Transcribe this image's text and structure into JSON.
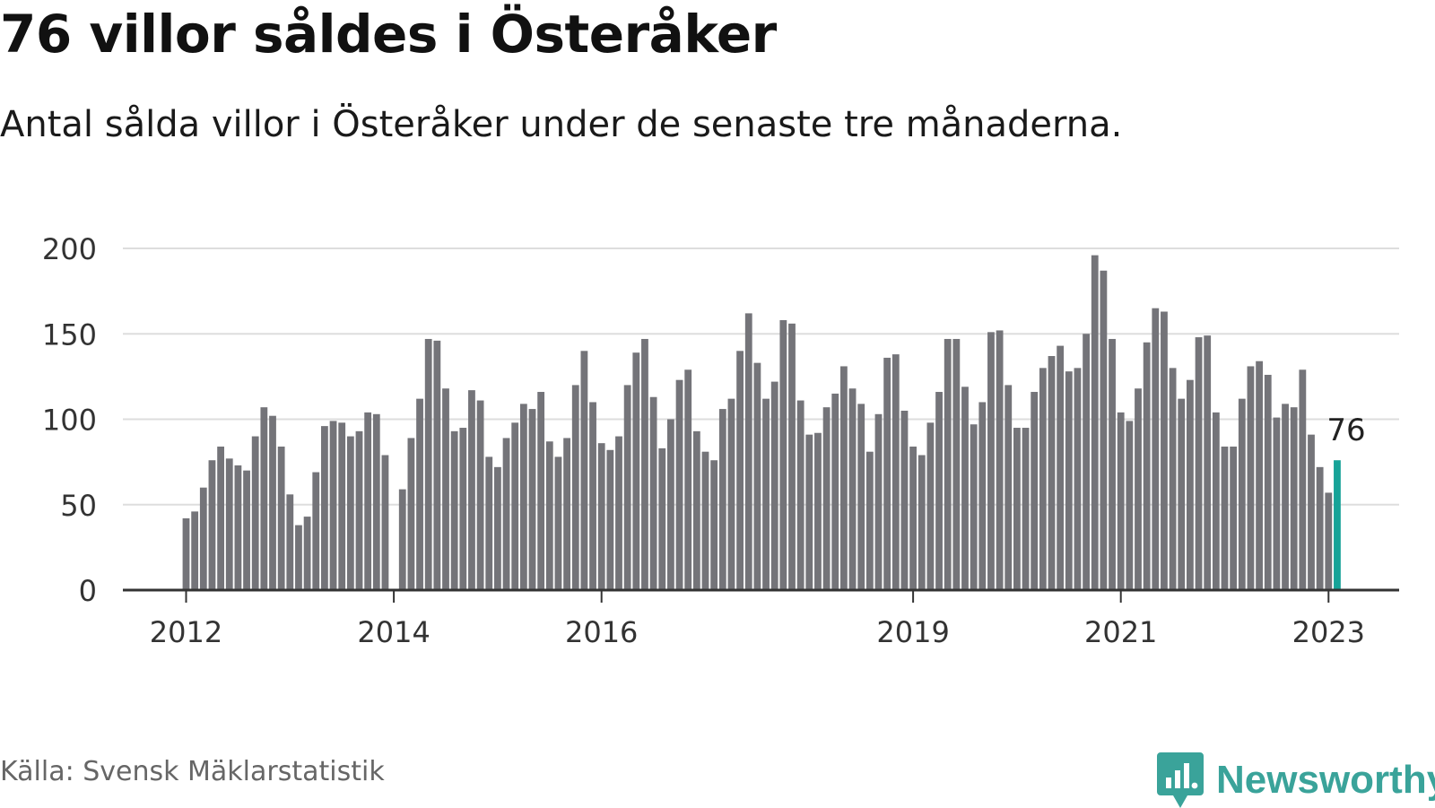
{
  "header": {
    "title": "76 villor såldes i Österåker",
    "subtitle": "Antal sålda villor i Österåker under de senaste tre månaderna."
  },
  "footer": {
    "source": "Källa: Svensk Mäklarstatistik",
    "brand": "Newsworthy",
    "brand_icon": "newsworthy-logo-icon"
  },
  "colors": {
    "bar": "#747479",
    "highlight": "#17a398",
    "grid": "#dddddd",
    "axis": "#333333",
    "brand": "#3aa39a"
  },
  "chart_data": {
    "type": "bar",
    "start": "2012-01",
    "x_ticks": [
      "2012",
      "2014",
      "2016",
      "2019",
      "2021",
      "2023"
    ],
    "y_ticks": [
      0,
      50,
      100,
      150,
      200
    ],
    "ylim": [
      0,
      200
    ],
    "grid": true,
    "highlight_label": "76",
    "values": [
      42,
      46,
      60,
      76,
      84,
      77,
      73,
      70,
      90,
      107,
      102,
      84,
      56,
      38,
      43,
      69,
      96,
      99,
      98,
      90,
      93,
      104,
      103,
      79,
      null,
      59,
      89,
      112,
      147,
      146,
      118,
      93,
      95,
      117,
      111,
      78,
      72,
      89,
      98,
      109,
      106,
      116,
      87,
      78,
      89,
      120,
      140,
      110,
      86,
      82,
      90,
      120,
      139,
      147,
      113,
      83,
      100,
      123,
      129,
      93,
      81,
      76,
      106,
      112,
      140,
      162,
      133,
      112,
      122,
      158,
      156,
      111,
      91,
      92,
      107,
      115,
      131,
      118,
      109,
      81,
      103,
      136,
      138,
      105,
      84,
      79,
      98,
      116,
      147,
      147,
      119,
      97,
      110,
      151,
      152,
      120,
      95,
      95,
      116,
      130,
      137,
      143,
      128,
      130,
      150,
      196,
      187,
      147,
      104,
      99,
      118,
      145,
      165,
      163,
      130,
      112,
      123,
      148,
      149,
      104,
      84,
      84,
      112,
      131,
      134,
      126,
      101,
      109,
      107,
      129,
      91,
      72,
      57,
      76
    ]
  }
}
